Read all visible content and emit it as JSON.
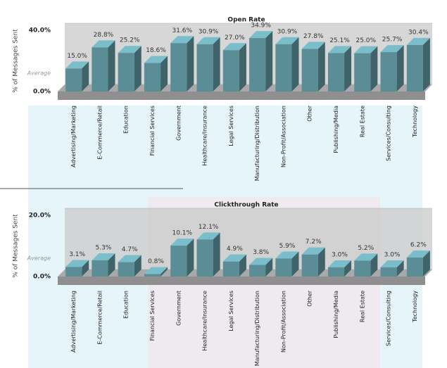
{
  "chart_data": [
    {
      "type": "bar3d",
      "title": "Open Rate",
      "y_label": "% of Messages Sent",
      "annotation": "Average",
      "categories": [
        "Advertising/Marketing",
        "E-Commerce/Retail",
        "Education",
        "Financial Services",
        "Government",
        "Healthcare/Insurance",
        "Legal Services",
        "Manufacturing/Distribution",
        "Non-Profit/Association",
        "Other",
        "Publishing/Media",
        "Real Estate",
        "Services/Consulting",
        "Technology"
      ],
      "values": [
        15.0,
        28.8,
        25.2,
        18.6,
        31.6,
        30.9,
        27.0,
        34.9,
        30.9,
        27.8,
        25.1,
        25.0,
        25.7,
        30.4
      ],
      "value_labels": [
        "15.0%",
        "28.8%",
        "25.2%",
        "18.6%",
        "31.6%",
        "30.9%",
        "27.0%",
        "34.9%",
        "30.9%",
        "27.8%",
        "25.1%",
        "25.0%",
        "25.7%",
        "30.4%"
      ],
      "color": "#5b8d96",
      "ylim": [
        0,
        40
      ],
      "yticks": [
        {
          "value": 0,
          "label": "0.0%"
        },
        {
          "value": 40,
          "label": "40.0%"
        }
      ]
    },
    {
      "type": "bar3d",
      "title": "Clickthrough Rate",
      "y_label": "% of Messages Sent",
      "annotation": "Average",
      "categories": [
        "Advertising/Marketing",
        "E-Commerce/Retail",
        "Education",
        "Financial Services",
        "Government",
        "Healthcare/Insurance",
        "Legal Services",
        "Manufacturing/Distribution",
        "Non-Profit/Association",
        "Other",
        "Publishing/Media",
        "Real Estate",
        "Services/Consulting",
        "Technology"
      ],
      "values": [
        3.1,
        5.3,
        4.7,
        0.8,
        10.1,
        12.1,
        4.9,
        3.8,
        5.9,
        7.2,
        3.0,
        5.2,
        3.0,
        6.2
      ],
      "value_labels": [
        "3.1%",
        "5.3%",
        "4.7%",
        "0.8%",
        "10.1%",
        "12.1%",
        "4.9%",
        "3.8%",
        "5.9%",
        "7.2%",
        "3.0%",
        "5.2%",
        "3.0%",
        "6.2%"
      ],
      "color": "#5b8d96",
      "ylim": [
        0,
        20
      ],
      "yticks": [
        {
          "value": 0,
          "label": "0.0%"
        },
        {
          "value": 20,
          "label": "20.0%"
        }
      ]
    }
  ]
}
